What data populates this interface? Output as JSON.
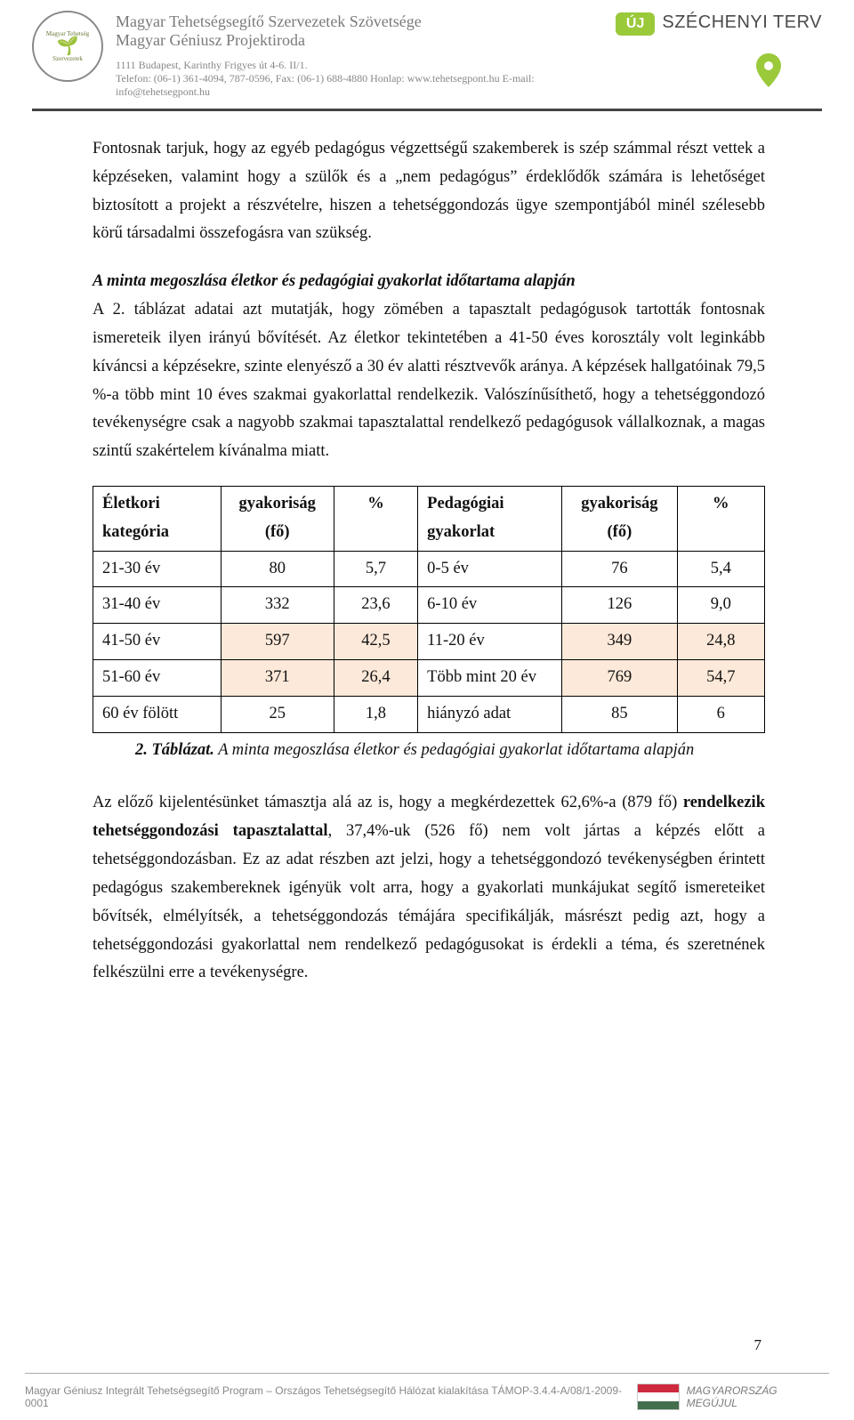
{
  "header": {
    "org_line1": "Magyar Tehetségsegítő Szervezetek Szövetsége",
    "org_line2": "Magyar Géniusz Projektiroda",
    "address": "1111 Budapest, Karinthy Frigyes út 4-6. II/1.",
    "contact": "Telefon: (06-1) 361-4094, 787-0596, Fax: (06-1) 688-4880 Honlap: www.tehetsegpont.hu  E-mail: info@tehetsegpont.hu",
    "badge": "ÚJ",
    "plan": "SZÉCHENYI TERV",
    "logo_ring_top": "Magyar Tehetség",
    "logo_ring_bottom": "Szervezetek"
  },
  "body": {
    "p1": "Fontosnak tarjuk, hogy az egyéb pedagógus végzettségű szakemberek is szép számmal részt vettek a képzéseken, valamint hogy a szülők és a „nem pedagógus” érdeklődők számára is lehetőséget biztosított a projekt a részvételre, hiszen a tehetséggondozás ügye szempontjából minél szélesebb körű társadalmi összefogásra van szükség.",
    "section_title": "A minta megoszlása életkor és pedagógiai gyakorlat időtartama alapján",
    "p2": "A 2. táblázat adatai azt mutatják, hogy zömében a tapasztalt pedagógusok tartották fontosnak ismereteik ilyen irányú bővítését. Az életkor tekintetében a 41-50 éves korosztály volt leginkább kíváncsi a képzésekre, szinte elenyésző a 30 év alatti résztvevők aránya. A képzések hallgatóinak 79,5 %-a több mint 10 éves szakmai gyakorlattal rendelkezik. Valószínűsíthető, hogy a tehetséggondozó tevékenységre csak a nagyobb szakmai tapasztalattal rendelkező pedagógusok vállalkoznak, a magas szintű szakértelem kívánalma miatt.",
    "caption_label": "2. Táblázat.",
    "caption_text": " A minta megoszlása életkor és pedagógiai gyakorlat időtartama alapján",
    "p3_pre": "Az előző kijelentésünket támasztja alá az is, hogy a megkérdezettek 62,6%-a (879 fő) ",
    "p3_bold": "rendelkezik tehetséggondozási tapasztalattal",
    "p3_post": ", 37,4%-uk (526 fő) nem volt jártas a képzés előtt a tehetséggondozásban. Ez az adat részben azt jelzi, hogy a tehetséggondozó tevékenységben érintett pedagógus szakembereknek igényük volt arra, hogy a gyakorlati munkájukat segítő ismereteiket bővítsék, elmélyítsék, a tehetséggondozás témájára specifikálják, másrészt pedig azt, hogy a tehetséggondozási gyakorlattal nem rendelkező pedagógusokat is érdekli a téma, és szeretnének felkészülni erre a tevékenységre."
  },
  "table": {
    "headers": {
      "col1": "Életkori kategória",
      "col2": "gyakoriság (fő)",
      "col3": "%",
      "col4": "Pedagógiai gyakorlat",
      "col5": "gyakoriság (fő)",
      "col6": "%"
    },
    "rows": [
      {
        "age": "21-30 év",
        "freq1": "80",
        "pct1": "5,7",
        "prac": "0-5 év",
        "freq2": "76",
        "pct2": "5,4",
        "hl": false
      },
      {
        "age": "31-40 év",
        "freq1": "332",
        "pct1": "23,6",
        "prac": "6-10 év",
        "freq2": "126",
        "pct2": "9,0",
        "hl": false
      },
      {
        "age": "41-50 év",
        "freq1": "597",
        "pct1": "42,5",
        "prac": "11-20 év",
        "freq2": "349",
        "pct2": "24,8",
        "hl": true
      },
      {
        "age": "51-60 év",
        "freq1": "371",
        "pct1": "26,4",
        "prac": "Több mint 20 év",
        "freq2": "769",
        "pct2": "54,7",
        "hl": true
      },
      {
        "age": "60 év fölött",
        "freq1": "25",
        "pct1": "1,8",
        "prac": "hiányzó adat",
        "freq2": "85",
        "pct2": "6",
        "hl": false
      }
    ],
    "col_widths": [
      "140px",
      "124px",
      "92px",
      "158px",
      "126px",
      "96px"
    ],
    "highlight_color": "#fde9d9",
    "border_color": "#000000"
  },
  "page_number": "7",
  "footer": {
    "text": "Magyar Géniusz Integrált Tehetségsegítő Program – Országos Tehetségsegítő Hálózat kialakítása TÁMOP-3.4.4-A/08/1-2009-0001",
    "flag_colors": [
      "#cd2a3e",
      "#ffffff",
      "#436f4d"
    ],
    "mm": "MAGYARORSZÁG MEGÚJUL"
  },
  "colors": {
    "rule": "#444444",
    "accent_green": "#9ac93a",
    "text_gray": "#7a7a7a"
  }
}
